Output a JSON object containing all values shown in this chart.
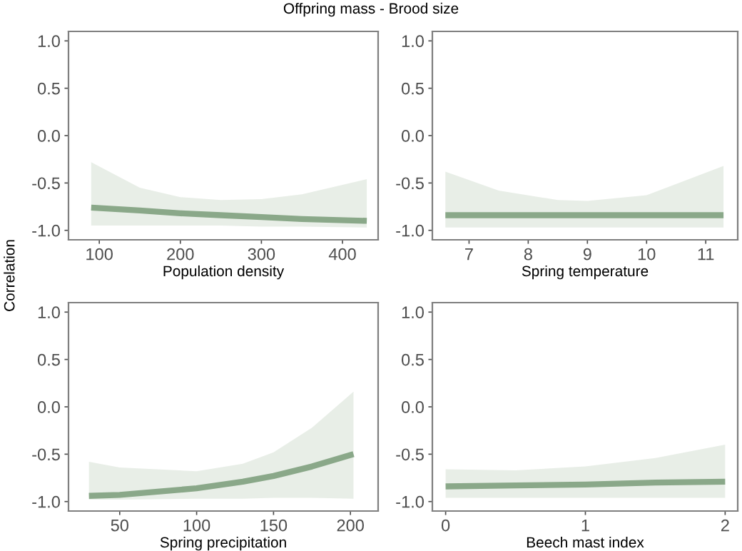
{
  "chart_data": [
    {
      "type": "line",
      "title": "Offpring mass - Brood size",
      "ylabel": "Correlation",
      "xlabel": "Population density",
      "x": [
        90,
        150,
        200,
        250,
        300,
        350,
        430
      ],
      "xlim": [
        62,
        444
      ],
      "xticks": [
        100,
        200,
        300,
        400
      ],
      "ylim": [
        -1.1,
        1.1
      ],
      "yticks": [
        {
          "value": -1,
          "label": "-1.0"
        },
        {
          "value": -0.5,
          "label": "-0.5"
        },
        {
          "value": 0,
          "label": "0.0"
        },
        {
          "value": 0.5,
          "label": "0.5"
        },
        {
          "value": 1,
          "label": "1.0"
        }
      ],
      "grid": false,
      "legend": false,
      "series": [
        {
          "color": "#8aa889",
          "values": [
            -0.76,
            -0.79,
            -0.82,
            -0.84,
            -0.86,
            -0.88,
            -0.9
          ],
          "lower": [
            -0.95,
            -0.95,
            -0.95,
            -0.95,
            -0.96,
            -0.96,
            -0.97
          ],
          "upper": [
            -0.28,
            -0.55,
            -0.65,
            -0.68,
            -0.67,
            -0.62,
            -0.46
          ]
        }
      ]
    },
    {
      "type": "line",
      "xlabel": "Spring temperature",
      "x": [
        6.6,
        7.5,
        8.5,
        9,
        10,
        11.3
      ],
      "xlim": [
        6.38,
        11.54
      ],
      "xticks": [
        7,
        8,
        9,
        10,
        11
      ],
      "ylim": [
        -1.1,
        1.1
      ],
      "yticks": [
        {
          "value": -1,
          "label": "-1.0"
        },
        {
          "value": -0.5,
          "label": "-0.5"
        },
        {
          "value": 0,
          "label": "0.0"
        },
        {
          "value": 0.5,
          "label": "0.5"
        },
        {
          "value": 1,
          "label": "1.0"
        }
      ],
      "grid": false,
      "legend": false,
      "series": [
        {
          "color": "#8aa889",
          "values": [
            -0.84,
            -0.84,
            -0.84,
            -0.84,
            -0.84,
            -0.84
          ],
          "lower": [
            -0.97,
            -0.97,
            -0.97,
            -0.97,
            -0.97,
            -0.97
          ],
          "upper": [
            -0.38,
            -0.58,
            -0.68,
            -0.69,
            -0.63,
            -0.32
          ]
        }
      ]
    },
    {
      "type": "line",
      "xlabel": "Spring precipitation",
      "x": [
        30,
        50,
        100,
        130,
        150,
        175,
        202
      ],
      "xlim": [
        16.7,
        218
      ],
      "xticks": [
        50,
        100,
        150,
        200
      ],
      "ylim": [
        -1.1,
        1.1
      ],
      "yticks": [
        {
          "value": -1,
          "label": "-1.0"
        },
        {
          "value": -0.5,
          "label": "-0.5"
        },
        {
          "value": 0,
          "label": "0.0"
        },
        {
          "value": 0.5,
          "label": "0.5"
        },
        {
          "value": 1,
          "label": "1.0"
        }
      ],
      "grid": false,
      "legend": false,
      "series": [
        {
          "color": "#8aa889",
          "values": [
            -0.94,
            -0.93,
            -0.86,
            -0.79,
            -0.73,
            -0.63,
            -0.5
          ],
          "lower": [
            -0.98,
            -0.98,
            -0.97,
            -0.97,
            -0.96,
            -0.96,
            -0.97
          ],
          "upper": [
            -0.58,
            -0.64,
            -0.68,
            -0.6,
            -0.48,
            -0.22,
            0.16
          ]
        }
      ]
    },
    {
      "type": "line",
      "xlabel": "Beech mast index",
      "x": [
        0,
        0.5,
        1,
        1.5,
        2
      ],
      "xlim": [
        -0.095,
        2.09
      ],
      "xticks": [
        0,
        1,
        2
      ],
      "ylim": [
        -1.1,
        1.1
      ],
      "yticks": [
        {
          "value": -1,
          "label": "-1.0"
        },
        {
          "value": -0.5,
          "label": "-0.5"
        },
        {
          "value": 0,
          "label": "0.0"
        },
        {
          "value": 0.5,
          "label": "0.5"
        },
        {
          "value": 1,
          "label": "1.0"
        }
      ],
      "grid": false,
      "legend": false,
      "series": [
        {
          "color": "#8aa889",
          "values": [
            -0.84,
            -0.83,
            -0.82,
            -0.8,
            -0.79
          ],
          "lower": [
            -0.96,
            -0.96,
            -0.96,
            -0.96,
            -0.96
          ],
          "upper": [
            -0.66,
            -0.67,
            -0.63,
            -0.54,
            -0.4
          ]
        }
      ]
    }
  ]
}
